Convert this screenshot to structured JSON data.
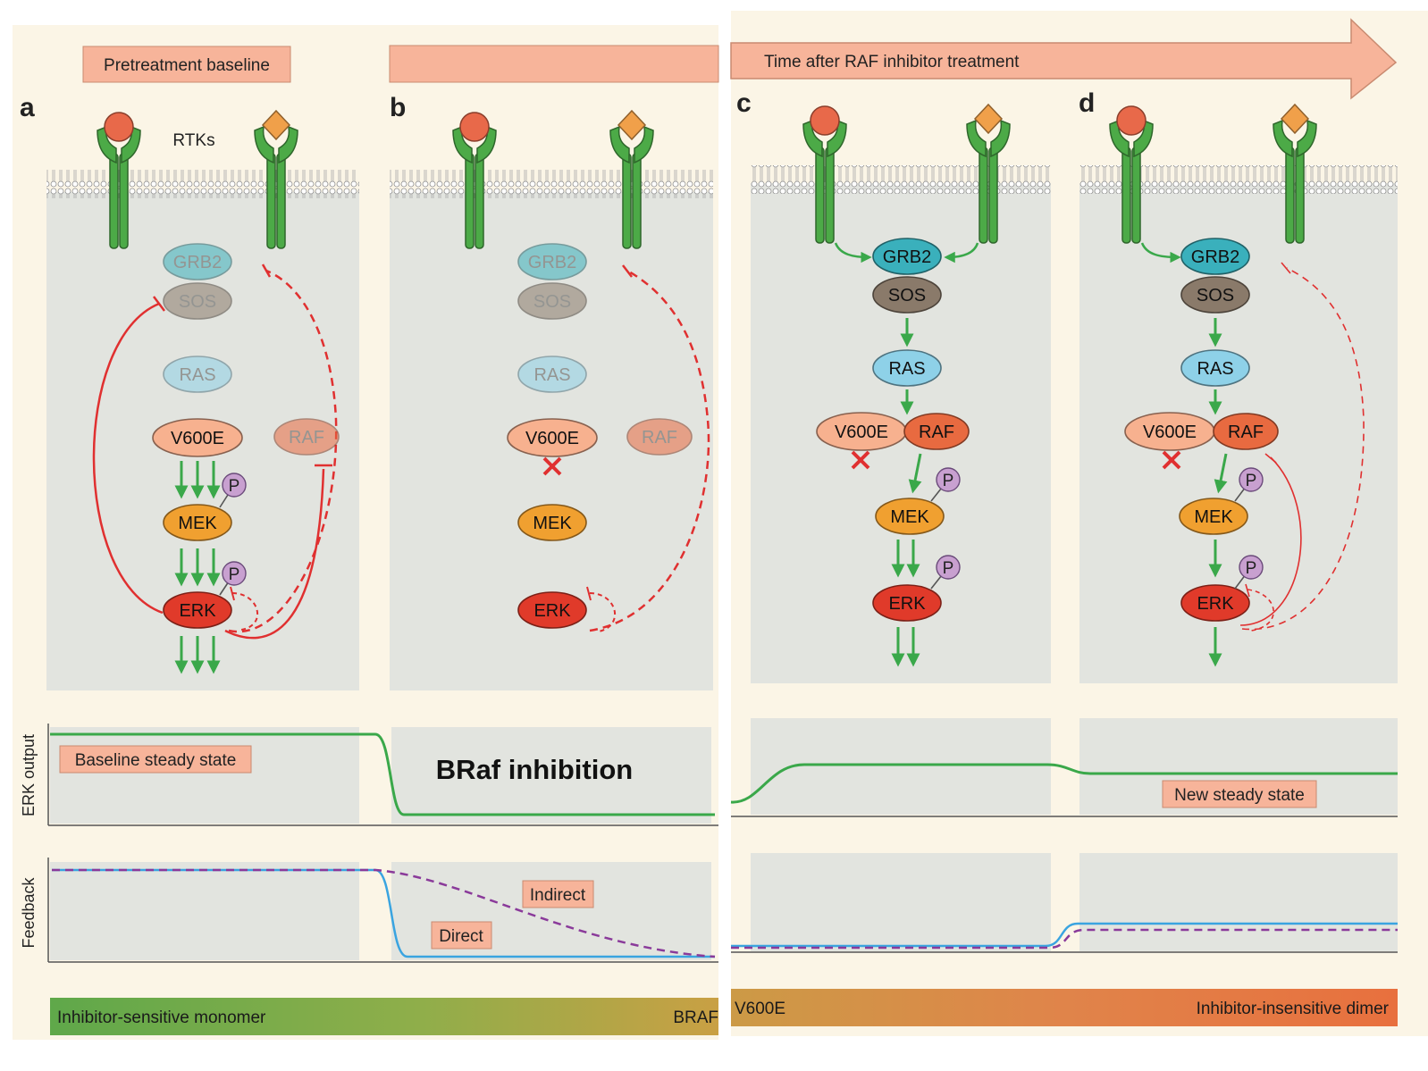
{
  "header": {
    "pretreatment_label": "Pretreatment baseline",
    "time_arrow_label": "Time after RAF inhibitor treatment"
  },
  "panels": {
    "a": "a",
    "b": "b",
    "c": "c",
    "d": "d"
  },
  "rtks_label": "RTKs",
  "nodes": {
    "grb2": "GRB2",
    "sos": "SOS",
    "ras": "RAS",
    "v600e": "V600E",
    "raf": "RAF",
    "mek": "MEK",
    "erk": "ERK",
    "p": "P"
  },
  "rows": {
    "erk_output_label": "ERK output",
    "feedback_label": "Feedback"
  },
  "annotations": {
    "baseline_steady_state": "Baseline steady state",
    "braf_inhibition": "BRaf inhibition",
    "new_steady_state": "New steady state",
    "indirect": "Indirect",
    "direct": "Direct"
  },
  "bottom_bar": {
    "left_label": "Inhibitor-sensitive monomer",
    "left_tail": "BRAF",
    "right_start": "V600E",
    "right_label": "Inhibitor-insensitive dimer"
  },
  "colors": {
    "background": "#fbf5e6",
    "cell": "#e2e4df",
    "label_box": "#f7b49a",
    "receptor": "#4caa47",
    "ligand_circle": "#e8694a",
    "ligand_diamond": "#f0a04a",
    "grb2": "#3ab0bc",
    "sos": "#8a7a6a",
    "ras": "#8ed1e8",
    "v600e": "#f7b18f",
    "raf": "#e86a40",
    "mek": "#f0a030",
    "erk": "#e03a2a",
    "phospho": "#c8a0d0",
    "activation_arrow": "#3aa84a",
    "inhibition": "#e03030",
    "erk_output_line": "#3aa84a",
    "direct_line": "#3aa4e0",
    "indirect_line": "#8a3a9a"
  }
}
